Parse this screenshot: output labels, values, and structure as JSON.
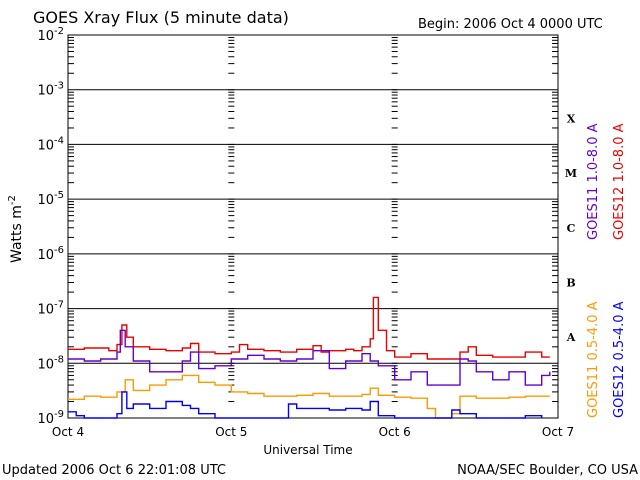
{
  "header": {
    "title": "GOES Xray Flux (5 minute data)",
    "begin": "Begin:  2006 Oct 4 0000 UTC"
  },
  "footer": {
    "updated": "Updated 2006 Oct  6 22:01:08 UTC",
    "credit": "NOAA/SEC Boulder, CO USA"
  },
  "chart_data": {
    "type": "line",
    "title": "GOES Xray Flux (5 minute data)",
    "xlabel": "Universal Time",
    "ylabel": "Watts m",
    "ylabel_exponent": "-2",
    "yscale": "log",
    "ylim": [
      1e-09,
      0.01
    ],
    "xlim": [
      0,
      3
    ],
    "x_unit": "days since 2006 Oct 4 0000 UTC",
    "x_ticks": [
      {
        "x": 0,
        "label": "Oct 4"
      },
      {
        "x": 1,
        "label": "Oct 5"
      },
      {
        "x": 2,
        "label": "Oct 6"
      },
      {
        "x": 3,
        "label": "Oct 7"
      }
    ],
    "y_ticks": [
      {
        "exp": -9,
        "base": "10",
        "sup": "-9"
      },
      {
        "exp": -8,
        "base": "10",
        "sup": "-8"
      },
      {
        "exp": -7,
        "base": "10",
        "sup": "-7"
      },
      {
        "exp": -6,
        "base": "10",
        "sup": "-6"
      },
      {
        "exp": -5,
        "base": "10",
        "sup": "-5"
      },
      {
        "exp": -4,
        "base": "10",
        "sup": "-4"
      },
      {
        "exp": -3,
        "base": "10",
        "sup": "-3"
      },
      {
        "exp": -2,
        "base": "10",
        "sup": "-2"
      }
    ],
    "flare_classes": [
      {
        "label": "A",
        "at": 3e-08
      },
      {
        "label": "B",
        "at": 3e-07
      },
      {
        "label": "C",
        "at": 3e-06
      },
      {
        "label": "M",
        "at": 3e-05
      },
      {
        "label": "X",
        "at": 0.0003
      }
    ],
    "legend_top": [
      {
        "label": "GOES11 1.0-8.0 A",
        "color": "#6600cc"
      },
      {
        "label": "GOES12 1.0-8.0 A",
        "color": "#ee0000"
      }
    ],
    "legend_bottom": [
      {
        "label": "GOES11 0.5-4.0 A",
        "color": "#ff9900"
      },
      {
        "label": "GOES12 0.5-4.0 A",
        "color": "#0000ff"
      }
    ],
    "series": [
      {
        "name": "GOES12 1.0-8.0 A",
        "color": "#ee0000",
        "points": [
          [
            0,
            1.8e-08
          ],
          [
            0.1,
            1.9e-08
          ],
          [
            0.25,
            1.7e-08
          ],
          [
            0.3,
            2.2e-08
          ],
          [
            0.33,
            5e-08
          ],
          [
            0.36,
            3e-08
          ],
          [
            0.4,
            2e-08
          ],
          [
            0.5,
            1.8e-08
          ],
          [
            0.6,
            1.7e-08
          ],
          [
            0.7,
            1.9e-08
          ],
          [
            0.75,
            2.3e-08
          ],
          [
            0.8,
            1.6e-08
          ],
          [
            0.9,
            1.5e-08
          ],
          [
            1.0,
            1.6e-08
          ],
          [
            1.05,
            2.2e-08
          ],
          [
            1.1,
            1.8e-08
          ],
          [
            1.2,
            1.7e-08
          ],
          [
            1.3,
            1.6e-08
          ],
          [
            1.4,
            1.8e-08
          ],
          [
            1.5,
            2.1e-08
          ],
          [
            1.55,
            1.6e-08
          ],
          [
            1.6,
            1.7e-08
          ],
          [
            1.7,
            1.8e-08
          ],
          [
            1.75,
            1.7e-08
          ],
          [
            1.8,
            2e-08
          ],
          [
            1.85,
            2.8e-08
          ],
          [
            1.87,
            1.6e-07
          ],
          [
            1.9,
            4e-08
          ],
          [
            1.95,
            1.7e-08
          ],
          [
            2.0,
            1.3e-08
          ],
          [
            2.1,
            1.5e-08
          ],
          [
            2.2,
            1.2e-08
          ],
          [
            2.3,
            1.2e-08
          ],
          [
            2.4,
            1.6e-08
          ],
          [
            2.45,
            2e-08
          ],
          [
            2.5,
            1.4e-08
          ],
          [
            2.6,
            1.3e-08
          ],
          [
            2.7,
            1.3e-08
          ],
          [
            2.8,
            1.6e-08
          ],
          [
            2.9,
            1.3e-08
          ],
          [
            2.95,
            1.3e-08
          ]
        ]
      },
      {
        "name": "GOES11 1.0-8.0 A",
        "color": "#6600cc",
        "points": [
          [
            0,
            1.2e-08
          ],
          [
            0.1,
            1.1e-08
          ],
          [
            0.2,
            1.2e-08
          ],
          [
            0.3,
            1.6e-08
          ],
          [
            0.32,
            4e-08
          ],
          [
            0.35,
            2e-08
          ],
          [
            0.4,
            1.1e-08
          ],
          [
            0.5,
            7e-09
          ],
          [
            0.6,
            7e-09
          ],
          [
            0.7,
            1.1e-08
          ],
          [
            0.75,
            1.6e-08
          ],
          [
            0.8,
            8e-09
          ],
          [
            0.9,
            9e-09
          ],
          [
            1.0,
            1.2e-08
          ],
          [
            1.1,
            1.4e-08
          ],
          [
            1.2,
            1.2e-08
          ],
          [
            1.3,
            1.1e-08
          ],
          [
            1.4,
            1.2e-08
          ],
          [
            1.5,
            1.7e-08
          ],
          [
            1.6,
            8e-09
          ],
          [
            1.7,
            1.1e-08
          ],
          [
            1.8,
            1.5e-08
          ],
          [
            1.85,
            1.1e-08
          ],
          [
            1.9,
            9e-09
          ],
          [
            2.0,
            5e-09
          ],
          [
            2.1,
            7e-09
          ],
          [
            2.2,
            4e-09
          ],
          [
            2.3,
            4e-09
          ],
          [
            2.4,
            1.2e-08
          ],
          [
            2.45,
            1.1e-08
          ],
          [
            2.5,
            7e-09
          ],
          [
            2.6,
            5e-09
          ],
          [
            2.7,
            7e-09
          ],
          [
            2.8,
            4e-09
          ],
          [
            2.9,
            6e-09
          ],
          [
            2.95,
            7e-09
          ]
        ]
      },
      {
        "name": "GOES11 0.5-4.0 A",
        "color": "#ff9900",
        "points": [
          [
            0,
            2.2e-09
          ],
          [
            0.1,
            2.5e-09
          ],
          [
            0.2,
            2.4e-09
          ],
          [
            0.3,
            3e-09
          ],
          [
            0.35,
            5e-09
          ],
          [
            0.4,
            3.2e-09
          ],
          [
            0.5,
            4e-09
          ],
          [
            0.6,
            5e-09
          ],
          [
            0.7,
            6e-09
          ],
          [
            0.8,
            4.5e-09
          ],
          [
            0.9,
            4e-09
          ],
          [
            1.0,
            3e-09
          ],
          [
            1.1,
            2.8e-09
          ],
          [
            1.2,
            2.5e-09
          ],
          [
            1.3,
            2.5e-09
          ],
          [
            1.4,
            2.6e-09
          ],
          [
            1.5,
            2.8e-09
          ],
          [
            1.6,
            2.5e-09
          ],
          [
            1.7,
            2.5e-09
          ],
          [
            1.8,
            2.7e-09
          ],
          [
            1.85,
            3.5e-09
          ],
          [
            1.9,
            2.6e-09
          ],
          [
            2.0,
            2.4e-09
          ],
          [
            2.1,
            2.3e-09
          ],
          [
            2.2,
            1.5e-09
          ],
          [
            2.25,
            1e-09
          ],
          [
            2.35,
            1.2e-09
          ],
          [
            2.4,
            2.5e-09
          ],
          [
            2.5,
            2.3e-09
          ],
          [
            2.6,
            2.3e-09
          ],
          [
            2.7,
            2.4e-09
          ],
          [
            2.8,
            2.5e-09
          ],
          [
            2.9,
            2.5e-09
          ],
          [
            2.95,
            2.5e-09
          ]
        ]
      },
      {
        "name": "GOES12 0.5-4.0 A",
        "color": "#0000ff",
        "points": [
          [
            0,
            1.3e-09
          ],
          [
            0.05,
            1.1e-09
          ],
          [
            0.1,
            1e-09
          ],
          [
            0.2,
            1e-09
          ],
          [
            0.3,
            1.2e-09
          ],
          [
            0.33,
            3e-09
          ],
          [
            0.36,
            1.5e-09
          ],
          [
            0.4,
            1.8e-09
          ],
          [
            0.5,
            1.5e-09
          ],
          [
            0.6,
            2e-09
          ],
          [
            0.7,
            1.7e-09
          ],
          [
            0.75,
            1.5e-09
          ],
          [
            0.8,
            1.2e-09
          ],
          [
            0.9,
            1e-09
          ],
          [
            1.0,
            1e-09
          ],
          [
            1.1,
            1e-09
          ],
          [
            1.2,
            1e-09
          ],
          [
            1.3,
            1e-09
          ],
          [
            1.35,
            1.8e-09
          ],
          [
            1.4,
            1.5e-09
          ],
          [
            1.5,
            1.5e-09
          ],
          [
            1.6,
            1.4e-09
          ],
          [
            1.7,
            1.5e-09
          ],
          [
            1.8,
            1.4e-09
          ],
          [
            1.85,
            2e-09
          ],
          [
            1.9,
            1.1e-09
          ],
          [
            2.0,
            1e-09
          ],
          [
            2.2,
            1e-09
          ],
          [
            2.3,
            1e-09
          ],
          [
            2.35,
            1.4e-09
          ],
          [
            2.4,
            1.2e-09
          ],
          [
            2.5,
            1e-09
          ],
          [
            2.6,
            1e-09
          ],
          [
            2.7,
            1e-09
          ],
          [
            2.8,
            1.1e-09
          ],
          [
            2.85,
            1.1e-09
          ],
          [
            2.9,
            1e-09
          ]
        ]
      }
    ]
  }
}
